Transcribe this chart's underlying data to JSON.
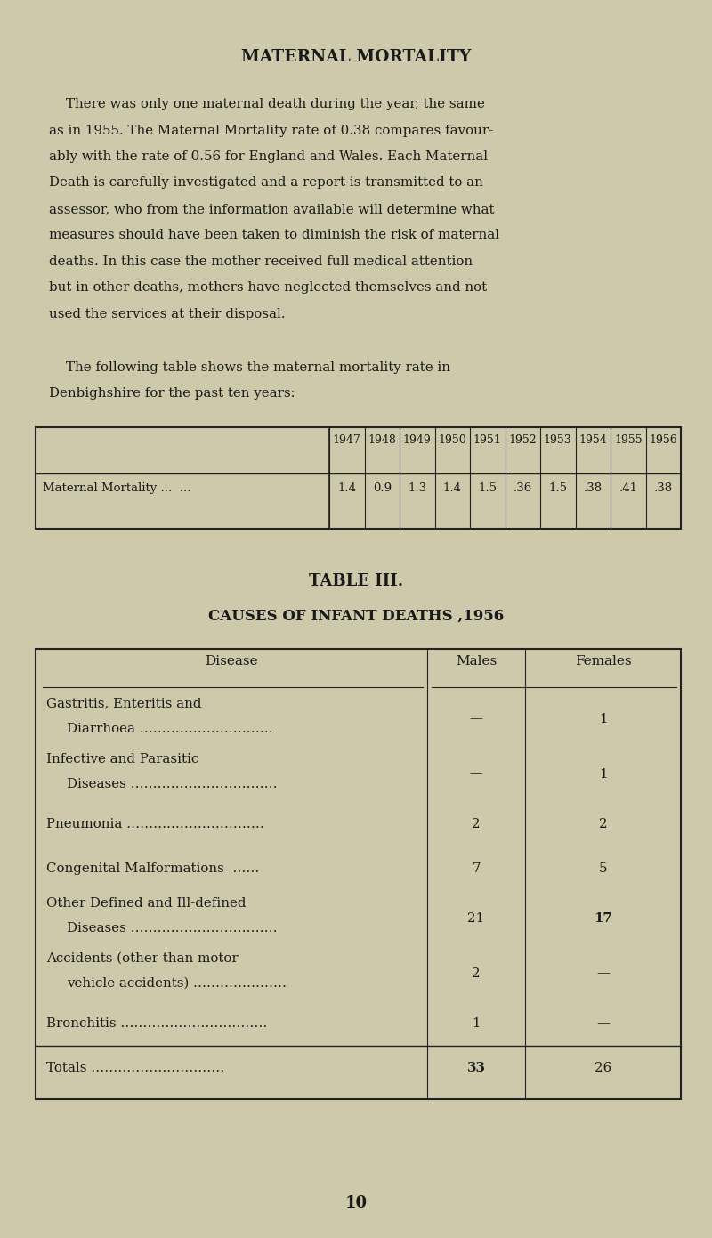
{
  "bg_color": "#cdc9aa",
  "text_color": "#1a1a1a",
  "page_width": 8.0,
  "page_height": 13.91,
  "title": "MATERNAL MORTALITY",
  "para_lines": [
    "    There was only one maternal death during the year, the same",
    "as in 1955. The Maternal Mortality rate of 0.38 compares favour-",
    "ably with the rate of 0.56 for England and Wales. Each Maternal",
    "Death is carefully investigated and a report is transmitted to an",
    "assessor, who from the information available will determine what",
    "measures should have been taken to diminish the risk of maternal",
    "deaths. In this case the mother received full medical attention",
    "but in other deaths, mothers have neglected themselves and not",
    "used the services at their disposal."
  ],
  "intro_lines": [
    "    The following table shows the maternal mortality rate in",
    "Denbighshire for the past ten years:"
  ],
  "table1_years": [
    "1947",
    "1948",
    "1949",
    "1950",
    "1951",
    "1952",
    "1953",
    "1954",
    "1955",
    "1956"
  ],
  "table1_row_label": "Maternal Mortality ...  ...",
  "table1_values": [
    "1.4",
    "0.9",
    "1.3",
    "1.4",
    "1.5",
    ".36",
    "1.5",
    ".38",
    ".41",
    ".38"
  ],
  "table2_title1": "TABLE III.",
  "table2_title2": "CAUSES OF INFANT DEATHS ,1956",
  "table2_col_headers": [
    "Disease",
    "Males",
    "Females"
  ],
  "table2_rows": [
    [
      "Gastritis, Enteritis and",
      "Diarrhoea …………………………",
      "—",
      "1",
      false
    ],
    [
      "Infective and Parasitic",
      "Diseases ……………………………",
      "—",
      "1",
      false
    ],
    [
      "Pneumonia ……….…………………",
      "",
      "2",
      "2",
      false
    ],
    [
      "Congenital Malformations  ……",
      "",
      "7",
      "5",
      false
    ],
    [
      "Other Defined and Ill-defined",
      "Diseases ……………………………",
      "21",
      "17",
      true
    ],
    [
      "Accidents (other than motor",
      "vehicle accidents) …………………",
      "2",
      "—",
      false
    ],
    [
      "Bronchitis ……………………………",
      "",
      "1",
      "—",
      false
    ],
    [
      "Totals …………………………",
      "",
      "33",
      "26",
      false
    ]
  ],
  "page_number": "10"
}
